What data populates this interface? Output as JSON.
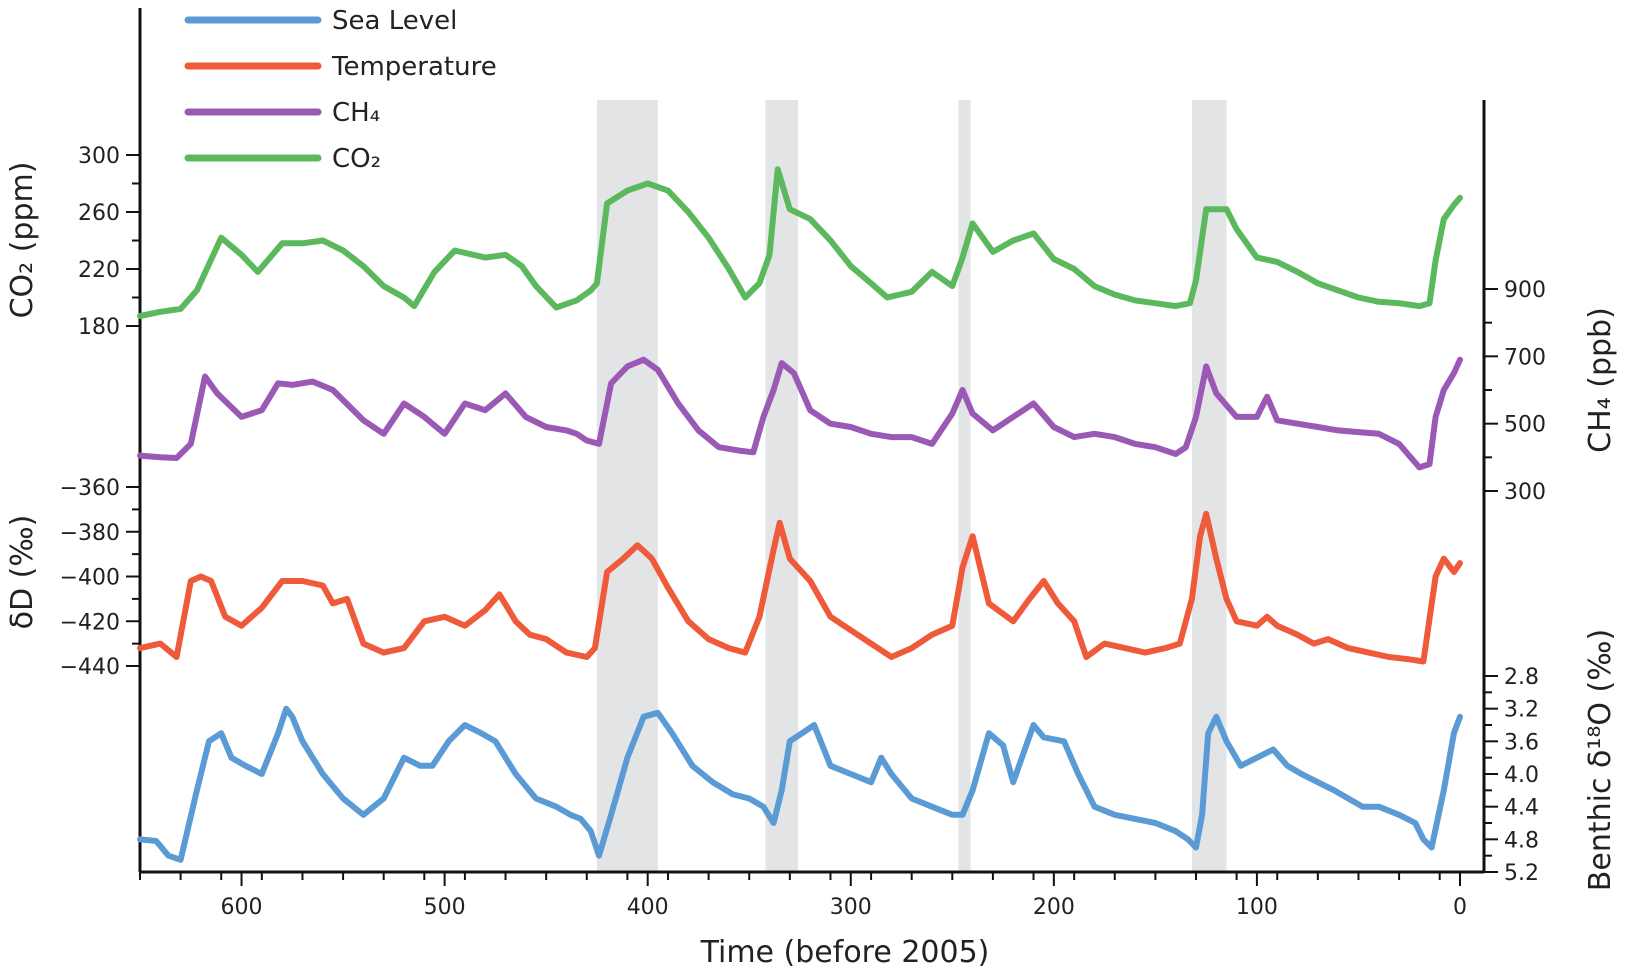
{
  "chart_data": {
    "type": "line",
    "xlabel": "Time (before 2005)",
    "x_axis": {
      "range": [
        650,
        0
      ],
      "reversed": true,
      "ticks": [
        600,
        500,
        400,
        300,
        200,
        100,
        0
      ],
      "tick_labels": [
        "600",
        "500",
        "400",
        "300",
        "200",
        "100",
        "0"
      ]
    },
    "legend": {
      "placement": "top-left",
      "entries": [
        {
          "label": "Sea Level",
          "color": "#5b9bd5"
        },
        {
          "label": "Temperature",
          "color": "#ee5a3a"
        },
        {
          "label": "CH₄",
          "color": "#9b59b6"
        },
        {
          "label": "CO₂",
          "color": "#5cb85c"
        }
      ]
    },
    "interglacial_bands": [
      [
        425,
        395
      ],
      [
        342,
        326
      ],
      [
        247,
        241
      ],
      [
        132,
        115
      ]
    ],
    "band_color": "#e3e4e6",
    "axes": {
      "co2": {
        "label": "CO₂ (ppm)",
        "side": "left",
        "range": [
          180,
          300
        ],
        "ticks": [
          180,
          220,
          260,
          300
        ],
        "tick_labels": [
          "180",
          "220",
          "260",
          "300"
        ]
      },
      "dd": {
        "label": "δD (‰)",
        "side": "left",
        "range": [
          -440,
          -360
        ],
        "ticks": [
          -440,
          -420,
          -400,
          -380,
          -360
        ],
        "tick_labels": [
          "−440",
          "−420",
          "−400",
          "−380",
          "−360"
        ]
      },
      "ch4": {
        "label": "CH₄ (ppb)",
        "side": "right",
        "range": [
          300,
          900
        ],
        "ticks": [
          300,
          500,
          700,
          900
        ],
        "tick_labels": [
          "300",
          "500",
          "700",
          "900"
        ]
      },
      "d18o": {
        "label": "Benthic δ¹⁸O (‰)",
        "side": "right",
        "range": [
          2.8,
          5.2
        ],
        "inverted": true,
        "ticks": [
          2.8,
          3.2,
          3.6,
          4.0,
          4.4,
          4.8,
          5.2
        ],
        "tick_labels": [
          "2.8",
          "3.2",
          "3.6",
          "4.0",
          "4.4",
          "4.8",
          "5.2"
        ]
      }
    },
    "series": [
      {
        "name": "CO₂",
        "axis": "co2",
        "color": "#5cb85c",
        "x": [
          650,
          640,
          630,
          622,
          610,
          600,
          592,
          580,
          570,
          560,
          550,
          540,
          530,
          520,
          515,
          505,
          495,
          480,
          470,
          462,
          455,
          445,
          435,
          428,
          425,
          420,
          410,
          400,
          390,
          380,
          370,
          360,
          352,
          345,
          340,
          336,
          330,
          320,
          310,
          300,
          290,
          282,
          270,
          260,
          250,
          245,
          240,
          230,
          220,
          210,
          200,
          190,
          180,
          170,
          160,
          150,
          140,
          133,
          130,
          125,
          115,
          110,
          100,
          90,
          80,
          70,
          60,
          50,
          40,
          30,
          20,
          15,
          12,
          8,
          3,
          0
        ],
        "y": [
          187,
          190,
          192,
          205,
          242,
          230,
          218,
          238,
          238,
          240,
          233,
          222,
          208,
          200,
          194,
          218,
          233,
          228,
          230,
          222,
          208,
          193,
          198,
          205,
          210,
          266,
          275,
          280,
          275,
          260,
          242,
          220,
          200,
          210,
          230,
          290,
          262,
          255,
          240,
          222,
          210,
          200,
          204,
          218,
          208,
          228,
          252,
          232,
          240,
          245,
          227,
          220,
          208,
          202,
          198,
          196,
          194,
          196,
          212,
          262,
          262,
          248,
          228,
          225,
          218,
          210,
          205,
          200,
          197,
          196,
          194,
          196,
          226,
          255,
          265,
          270
        ]
      },
      {
        "name": "CH₄",
        "axis": "ch4",
        "color": "#9b59b6",
        "x": [
          650,
          640,
          632,
          625,
          618,
          612,
          600,
          590,
          582,
          575,
          565,
          555,
          540,
          530,
          520,
          510,
          500,
          490,
          480,
          475,
          470,
          460,
          450,
          440,
          435,
          430,
          424,
          418,
          410,
          402,
          395,
          385,
          375,
          365,
          355,
          348,
          343,
          338,
          334,
          328,
          320,
          310,
          300,
          290,
          280,
          270,
          260,
          250,
          245,
          240,
          230,
          220,
          210,
          200,
          190,
          180,
          170,
          160,
          150,
          140,
          135,
          130,
          125,
          120,
          110,
          100,
          95,
          90,
          80,
          70,
          60,
          50,
          40,
          30,
          20,
          15,
          12,
          8,
          3,
          0
        ],
        "y": [
          405,
          400,
          398,
          440,
          640,
          590,
          520,
          540,
          620,
          615,
          625,
          600,
          510,
          470,
          560,
          520,
          470,
          560,
          540,
          565,
          590,
          520,
          490,
          480,
          470,
          450,
          440,
          620,
          670,
          690,
          660,
          560,
          480,
          430,
          420,
          415,
          520,
          600,
          680,
          650,
          540,
          500,
          490,
          470,
          460,
          460,
          440,
          530,
          600,
          530,
          480,
          520,
          560,
          490,
          460,
          470,
          460,
          440,
          430,
          410,
          430,
          520,
          670,
          590,
          520,
          520,
          580,
          510,
          500,
          490,
          480,
          475,
          470,
          440,
          370,
          380,
          520,
          600,
          650,
          690
        ]
      },
      {
        "name": "Temperature",
        "axis": "dd",
        "color": "#ee5a3a",
        "x": [
          650,
          640,
          632,
          625,
          620,
          615,
          608,
          600,
          590,
          580,
          570,
          560,
          555,
          548,
          540,
          530,
          520,
          510,
          500,
          490,
          480,
          473,
          465,
          458,
          450,
          440,
          430,
          426,
          420,
          412,
          405,
          398,
          390,
          380,
          370,
          360,
          352,
          345,
          338,
          335,
          330,
          320,
          310,
          300,
          290,
          280,
          270,
          260,
          250,
          245,
          240,
          232,
          220,
          212,
          205,
          198,
          190,
          184,
          175,
          165,
          155,
          145,
          138,
          132,
          128,
          125,
          120,
          115,
          110,
          100,
          95,
          90,
          80,
          72,
          65,
          55,
          45,
          35,
          25,
          18,
          12,
          8,
          3,
          0
        ],
        "y": [
          -432,
          -430,
          -436,
          -402,
          -400,
          -402,
          -418,
          -422,
          -414,
          -402,
          -402,
          -404,
          -412,
          -410,
          -430,
          -434,
          -432,
          -420,
          -418,
          -422,
          -415,
          -408,
          -420,
          -426,
          -428,
          -434,
          -436,
          -432,
          -398,
          -392,
          -386,
          -392,
          -405,
          -420,
          -428,
          -432,
          -434,
          -418,
          -388,
          -376,
          -392,
          -402,
          -418,
          -424,
          -430,
          -436,
          -432,
          -426,
          -422,
          -396,
          -382,
          -412,
          -420,
          -410,
          -402,
          -412,
          -420,
          -436,
          -430,
          -432,
          -434,
          -432,
          -430,
          -410,
          -382,
          -372,
          -392,
          -410,
          -420,
          -422,
          -418,
          -422,
          -426,
          -430,
          -428,
          -432,
          -434,
          -436,
          -437,
          -438,
          -400,
          -392,
          -398,
          -394
        ]
      },
      {
        "name": "Sea Level",
        "axis": "d18o",
        "color": "#5b9bd5",
        "x": [
          650,
          642,
          636,
          630,
          622,
          616,
          610,
          605,
          598,
          590,
          582,
          578,
          575,
          570,
          560,
          550,
          540,
          530,
          520,
          512,
          506,
          498,
          490,
          482,
          475,
          465,
          455,
          445,
          438,
          433,
          428,
          424,
          418,
          410,
          402,
          395,
          388,
          378,
          368,
          358,
          350,
          343,
          338,
          334,
          330,
          324,
          318,
          310,
          300,
          290,
          285,
          280,
          270,
          260,
          250,
          245,
          240,
          232,
          225,
          220,
          210,
          205,
          195,
          188,
          180,
          170,
          160,
          150,
          140,
          134,
          130,
          127,
          124,
          120,
          115,
          108,
          100,
          92,
          85,
          78,
          70,
          62,
          55,
          48,
          40,
          30,
          22,
          18,
          14,
          8,
          3,
          0
        ],
        "y": [
          4.8,
          4.82,
          5.0,
          5.05,
          4.2,
          3.6,
          3.5,
          3.8,
          3.9,
          4.0,
          3.5,
          3.2,
          3.3,
          3.6,
          4.0,
          4.3,
          4.5,
          4.3,
          3.8,
          3.9,
          3.9,
          3.6,
          3.4,
          3.5,
          3.6,
          4.0,
          4.3,
          4.4,
          4.5,
          4.55,
          4.7,
          5.0,
          4.5,
          3.8,
          3.3,
          3.25,
          3.5,
          3.9,
          4.1,
          4.25,
          4.3,
          4.4,
          4.6,
          4.2,
          3.6,
          3.5,
          3.4,
          3.9,
          4.0,
          4.1,
          3.8,
          4.0,
          4.3,
          4.4,
          4.5,
          4.5,
          4.2,
          3.5,
          3.65,
          4.1,
          3.4,
          3.55,
          3.6,
          4.0,
          4.4,
          4.5,
          4.55,
          4.6,
          4.7,
          4.8,
          4.9,
          4.5,
          3.5,
          3.3,
          3.6,
          3.9,
          3.8,
          3.7,
          3.9,
          4.0,
          4.1,
          4.2,
          4.3,
          4.4,
          4.4,
          4.5,
          4.6,
          4.8,
          4.9,
          4.2,
          3.5,
          3.3
        ]
      }
    ]
  }
}
